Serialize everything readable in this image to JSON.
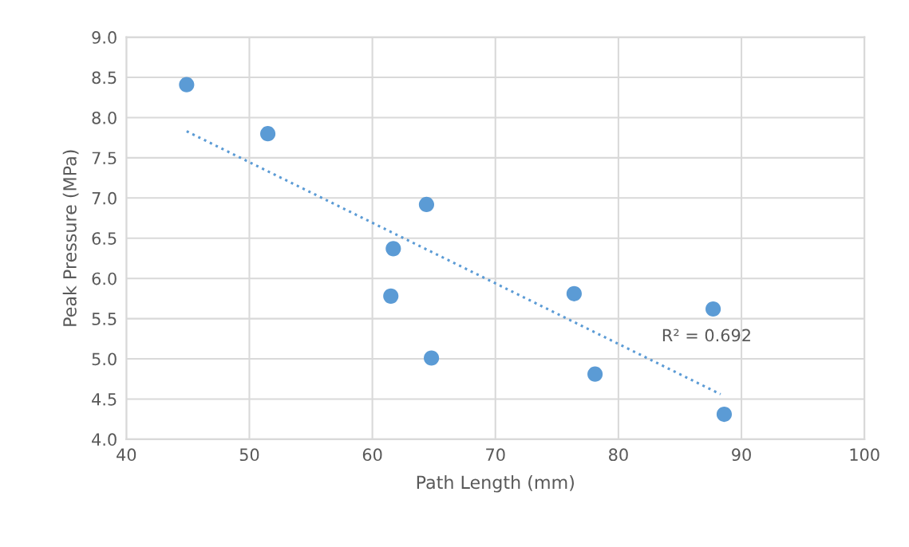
{
  "chart_data": {
    "type": "scatter",
    "xlabel": "Path Length (mm)",
    "ylabel": "Peak Pressure (MPa)",
    "xlim": [
      40,
      100
    ],
    "xticks": [
      40,
      50,
      60,
      70,
      80,
      90,
      100
    ],
    "ylim": [
      4.0,
      9.0
    ],
    "yticks": [
      {
        "value": 4.0,
        "label": "4.0"
      },
      {
        "value": 4.5,
        "label": "4.5"
      },
      {
        "value": 5.0,
        "label": "5.0"
      },
      {
        "value": 5.5,
        "label": "5.5"
      },
      {
        "value": 6.0,
        "label": "6.0"
      },
      {
        "value": 6.5,
        "label": "6.5"
      },
      {
        "value": 7.0,
        "label": "7.0"
      },
      {
        "value": 7.5,
        "label": "7.5"
      },
      {
        "value": 8.0,
        "label": "8.0"
      },
      {
        "value": 8.5,
        "label": "8.5"
      },
      {
        "value": 9.0,
        "label": "9.0"
      }
    ],
    "grid": true,
    "series": [
      {
        "marker": "circle",
        "color": "#5b9bd5",
        "x": [
          44.9,
          51.5,
          64.4,
          61.7,
          61.5,
          64.8,
          76.4,
          78.1,
          87.7,
          88.6
        ],
        "values": [
          8.41,
          7.8,
          6.92,
          6.37,
          5.78,
          5.01,
          5.81,
          4.81,
          5.62,
          4.31
        ]
      },
      {
        "type": "line",
        "color": "#5b9bd5",
        "line_style": "dotted",
        "x": [
          44.9,
          88.3
        ],
        "values": [
          7.83,
          4.56
        ]
      }
    ],
    "annotations": [
      "R² = 0.692"
    ]
  }
}
